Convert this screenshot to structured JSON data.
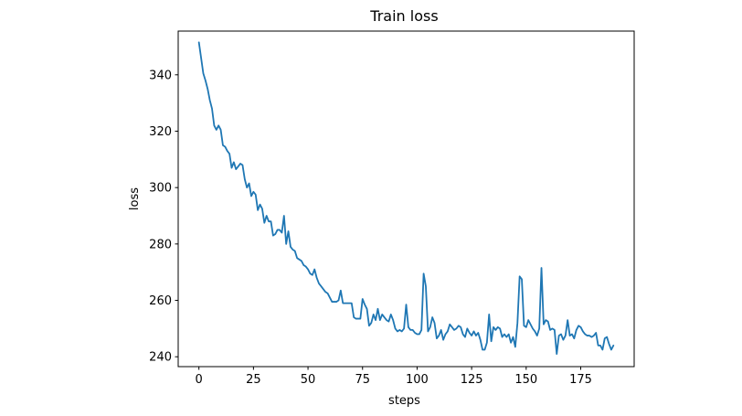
{
  "chart_data": {
    "type": "line",
    "title": "Train loss",
    "xlabel": "steps",
    "ylabel": "loss",
    "xlim": [
      -9.5,
      199.5
    ],
    "ylim": [
      236.5,
      355.5
    ],
    "xticks": [
      0,
      25,
      50,
      75,
      100,
      125,
      150,
      175
    ],
    "xtick_labels": [
      "0",
      "25",
      "50",
      "75",
      "100",
      "125",
      "150",
      "175"
    ],
    "yticks": [
      240,
      260,
      280,
      300,
      320,
      340
    ],
    "ytick_labels": [
      "240",
      "260",
      "280",
      "300",
      "320",
      "340"
    ],
    "grid": false,
    "legend": "none",
    "line_color": "#1f77b4",
    "series": [
      {
        "x": [
          0,
          1,
          2,
          3,
          4,
          5,
          6,
          7,
          8,
          9,
          10,
          11,
          12,
          13,
          14,
          15,
          16,
          17,
          18,
          19,
          20,
          21,
          22,
          23,
          24,
          25,
          26,
          27,
          28,
          29,
          30,
          31,
          32,
          33,
          34,
          35,
          36,
          37,
          38,
          39,
          40,
          41,
          42,
          43,
          44,
          45,
          46,
          47,
          48,
          49,
          50,
          51,
          52,
          53,
          54,
          55,
          56,
          57,
          58,
          59,
          60,
          61,
          62,
          63,
          64,
          65,
          66,
          67,
          68,
          69,
          70,
          71,
          72,
          73,
          74,
          75,
          76,
          77,
          78,
          79,
          80,
          81,
          82,
          83,
          84,
          85,
          86,
          87,
          88,
          89,
          90,
          91,
          92,
          93,
          94,
          95,
          96,
          97,
          98,
          99,
          100,
          101,
          102,
          103,
          104,
          105,
          106,
          107,
          108,
          109,
          110,
          111,
          112,
          113,
          114,
          115,
          116,
          117,
          118,
          119,
          120,
          121,
          122,
          123,
          124,
          125,
          126,
          127,
          128,
          129,
          130,
          131,
          132,
          133,
          134,
          135,
          136,
          137,
          138,
          139,
          140,
          141,
          142,
          143,
          144,
          145,
          146,
          147,
          148,
          149,
          150,
          151,
          152,
          153,
          154,
          155,
          156,
          157,
          158,
          159,
          160,
          161,
          162,
          163,
          164,
          165,
          166,
          167,
          168,
          169,
          170,
          171,
          172,
          173,
          174,
          175,
          176,
          177,
          178,
          179,
          180,
          181,
          182,
          183,
          184,
          185,
          186,
          187,
          188,
          189,
          190
        ],
        "values": [
          351.5,
          346,
          340.5,
          338,
          335,
          331,
          328,
          322,
          320.5,
          322,
          320.5,
          315,
          314.5,
          313,
          312,
          307,
          309,
          306.5,
          307.5,
          308.5,
          308,
          303,
          300,
          301.5,
          297,
          298.5,
          297.5,
          292,
          294,
          292.5,
          287.5,
          290,
          288,
          288,
          283,
          283.5,
          285,
          285,
          284,
          290,
          280,
          284.5,
          279,
          278,
          277.5,
          275,
          274.5,
          274,
          272.5,
          272,
          271,
          269.5,
          269,
          271,
          268,
          266,
          265,
          264,
          263,
          262.5,
          261,
          259.5,
          259.5,
          259.5,
          260,
          263.5,
          259,
          259,
          259,
          259,
          259,
          254,
          253.5,
          253.5,
          253.5,
          260.5,
          258.5,
          257,
          251,
          252,
          255,
          253,
          257,
          253,
          255,
          254,
          253,
          252.5,
          255,
          253,
          250,
          249,
          249.5,
          249,
          250,
          258.5,
          250.5,
          249.5,
          249.5,
          248.5,
          248,
          248,
          249.5,
          269.5,
          265,
          249,
          250.5,
          254,
          252,
          246.5,
          247.5,
          249.5,
          246,
          248,
          249,
          251.5,
          250.5,
          249.5,
          250,
          251,
          250.5,
          248,
          247,
          250,
          248.5,
          247.5,
          249,
          247.5,
          248.5,
          246,
          242.5,
          242.5,
          245,
          255,
          245.5,
          250.5,
          249.5,
          250.5,
          250,
          247,
          248,
          247,
          248,
          245,
          247,
          243.5,
          252,
          268.5,
          267.5,
          251,
          250.5,
          253,
          251.5,
          250,
          249,
          247.5,
          250,
          271.5,
          251.5,
          253,
          252.5,
          249.5,
          250,
          249.5,
          241,
          247.5,
          248,
          246,
          247.5,
          253,
          247.5,
          248,
          246.5,
          249.5,
          251,
          250.5,
          249,
          248,
          247.5,
          247.5,
          247,
          247.5,
          248.5,
          244,
          244,
          242.5,
          246.5,
          247,
          244.5,
          242.5,
          244
        ]
      }
    ]
  }
}
